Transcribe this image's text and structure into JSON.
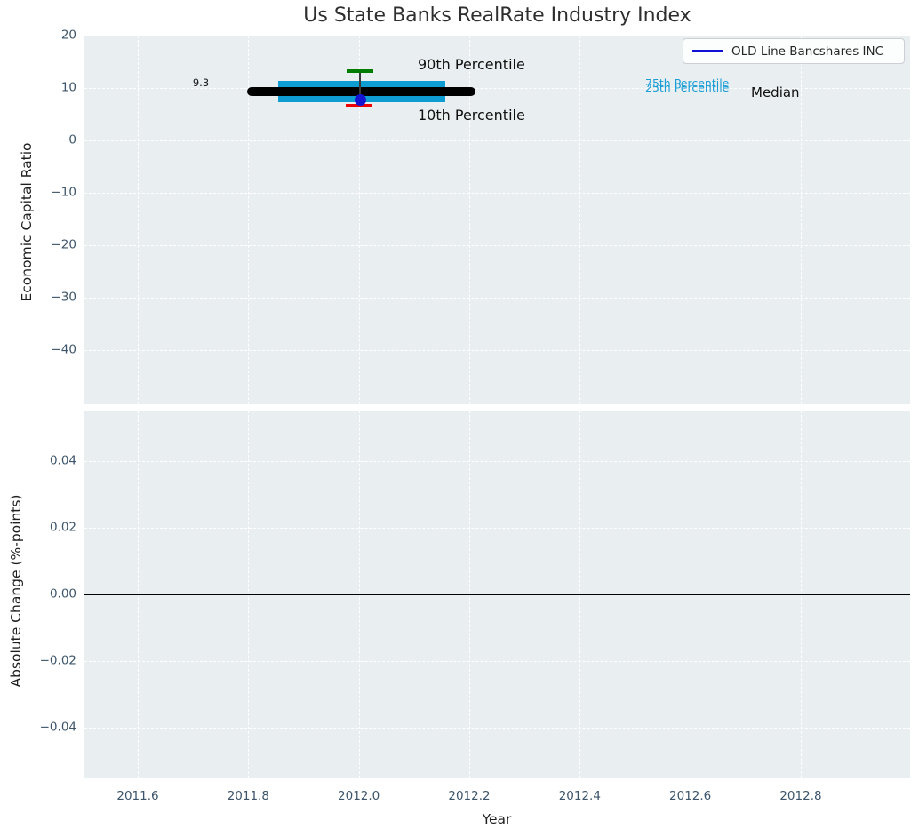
{
  "title": "Us State Banks RealRate Industry Index",
  "legend": {
    "label": "OLD Line Bancshares INC",
    "line_color": "#1111d4"
  },
  "top_plot": {
    "ylabel": "Economic Capital Ratio",
    "yticks": [
      "20",
      "10",
      "0",
      "−10",
      "−20",
      "−30",
      "−40"
    ],
    "annotations": {
      "median_value": "9.3",
      "p90": "90th Percentile",
      "p10": "10th Percentile",
      "p75": "75th Percentile",
      "p25": "25th Percentile",
      "median": "Median"
    }
  },
  "bottom_plot": {
    "ylabel": "Absolute Change (%-points)",
    "yticks": [
      "0.04",
      "0.02",
      "0.00",
      "−0.02",
      "−0.04"
    ]
  },
  "xaxis": {
    "label": "Year",
    "ticks": [
      "2011.6",
      "2011.8",
      "2012.0",
      "2012.2",
      "2012.4",
      "2012.6",
      "2012.8"
    ]
  },
  "colors": {
    "plot_background": "#e9eef0",
    "gridline": "#ffffff",
    "median_line": "#000000",
    "iqr_band": "#0d9dd3",
    "p90_cap": "#007c00",
    "p10_cap": "#f10000",
    "company_marker": "#1414d2",
    "legend_line": "#1111d4",
    "tick_label": "#3d556b"
  },
  "chart_data": [
    {
      "type": "line",
      "title": "Us State Banks RealRate Industry Index",
      "xlabel": "Year",
      "ylabel": "Economic Capital Ratio",
      "xlim": [
        2011.5,
        2012.97
      ],
      "ylim": [
        -50.3,
        20
      ],
      "grid": true,
      "legend_position": "upper right",
      "series": [
        {
          "name": "Median",
          "type": "line",
          "color": "#000000",
          "linewidth": 7,
          "x": [
            2011.8,
            2012.21
          ],
          "values": [
            9.3,
            9.3
          ]
        },
        {
          "name": "25th-75th Percentile band",
          "type": "band",
          "color": "#0d9dd3",
          "x": [
            2011.85,
            2012.15
          ],
          "y_low": 7.3,
          "y_high": 11.3
        },
        {
          "name": "10th-90th Percentile whisker",
          "type": "errorbar",
          "x": [
            2012.0
          ],
          "y_low": 6.7,
          "y_high": 13.2,
          "cap_top_color": "#007c00",
          "cap_bottom_color": "#f10000"
        },
        {
          "name": "OLD Line Bancshares INC",
          "type": "scatter",
          "color": "#1414d2",
          "x": [
            2012.0
          ],
          "values": [
            7.8
          ]
        }
      ],
      "annotations": [
        {
          "text": "9.3",
          "x": 2011.71,
          "y": 9.3
        },
        {
          "text": "90th Percentile",
          "x": 2012.11,
          "y": 14.6
        },
        {
          "text": "10th Percentile",
          "x": 2012.11,
          "y": 5.0
        },
        {
          "text": "75th Percentile",
          "x": 2012.52,
          "y": 9.9
        },
        {
          "text": "25th Percentile",
          "x": 2012.52,
          "y": 9.2
        },
        {
          "text": "Median",
          "x": 2012.71,
          "y": 9.4
        }
      ]
    },
    {
      "type": "line",
      "xlabel": "Year",
      "ylabel": "Absolute Change (%-points)",
      "xlim": [
        2011.5,
        2012.97
      ],
      "ylim": [
        -0.055,
        0.055
      ],
      "grid": true,
      "series": [
        {
          "name": "zero-line",
          "type": "line",
          "color": "#000000",
          "x": [
            2011.5,
            2012.97
          ],
          "values": [
            0,
            0
          ]
        }
      ]
    }
  ]
}
